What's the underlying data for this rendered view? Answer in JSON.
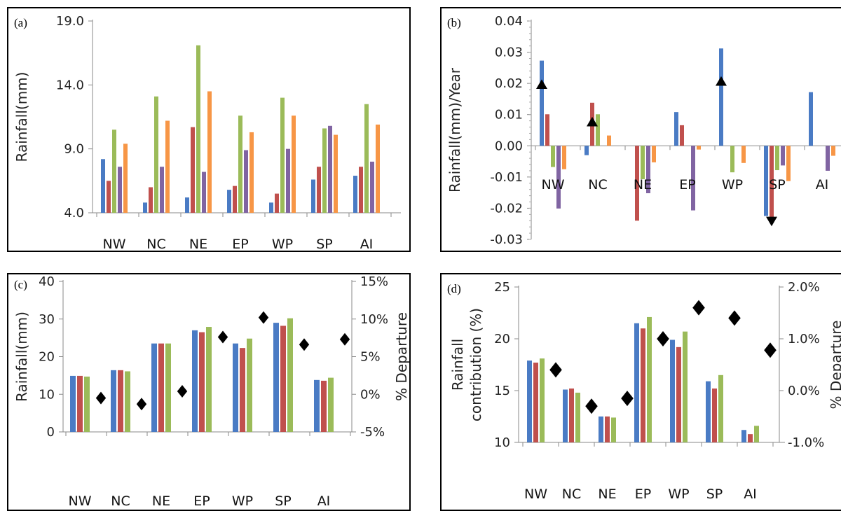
{
  "colors": {
    "blue": "#4a7bc4",
    "red": "#c0504d",
    "green": "#9bbb59",
    "purple": "#8064a2",
    "orange": "#f79646",
    "marker": "#000000"
  },
  "chart_data": [
    {
      "id": "a",
      "panel_label": "(a)",
      "type": "bar",
      "categories": [
        "NW",
        "NC",
        "NE",
        "EP",
        "WP",
        "SP",
        "AI"
      ],
      "ylabel": "Rainfall(mm)",
      "ylim": [
        4.0,
        19.0
      ],
      "yticks": [
        "4.0",
        "9.0",
        "14.0",
        "19.0"
      ],
      "ytick_values": [
        4,
        9,
        14,
        19
      ],
      "series": [
        {
          "color": "blue",
          "values": [
            8.2,
            4.8,
            5.2,
            5.8,
            4.8,
            6.6,
            6.9
          ]
        },
        {
          "color": "red",
          "values": [
            6.5,
            6.0,
            10.7,
            6.1,
            5.5,
            7.6,
            7.6
          ]
        },
        {
          "color": "green",
          "values": [
            10.5,
            13.1,
            17.1,
            11.6,
            13.0,
            10.6,
            12.5
          ]
        },
        {
          "color": "purple",
          "values": [
            7.6,
            7.6,
            7.2,
            8.9,
            9.0,
            10.8,
            8.0
          ]
        },
        {
          "color": "orange",
          "values": [
            9.4,
            11.2,
            13.5,
            10.3,
            11.6,
            10.1,
            10.9
          ]
        }
      ]
    },
    {
      "id": "b",
      "panel_label": "(b)",
      "type": "bar",
      "categories": [
        "NW",
        "NC",
        "NE",
        "EP",
        "WP",
        "SP",
        "AI"
      ],
      "ylabel": "Rainfall(mm)/Year",
      "ylim": [
        -0.03,
        0.04
      ],
      "yticks": [
        "-0.03",
        "-0.02",
        "-0.01",
        "0.00",
        "0.01",
        "0.02",
        "0.03",
        "0.04"
      ],
      "ytick_values": [
        -0.03,
        -0.02,
        -0.01,
        0.0,
        0.01,
        0.02,
        0.03,
        0.04
      ],
      "series": [
        {
          "color": "blue",
          "values": [
            0.0273,
            -0.003,
            0.0,
            0.0108,
            0.0312,
            -0.0225,
            0.0172
          ]
        },
        {
          "color": "red",
          "values": [
            0.0101,
            0.0138,
            -0.024,
            0.0066,
            0.0,
            -0.0245,
            0.0
          ]
        },
        {
          "color": "green",
          "values": [
            -0.0068,
            0.0101,
            -0.0107,
            0.0,
            -0.0085,
            -0.0078,
            0.0
          ]
        },
        {
          "color": "purple",
          "values": [
            -0.0201,
            0.0,
            -0.0152,
            -0.0207,
            0.0,
            -0.0063,
            -0.008
          ]
        },
        {
          "color": "orange",
          "values": [
            -0.0075,
            0.0033,
            -0.0053,
            -0.0012,
            -0.0055,
            -0.0113,
            -0.0032
          ]
        }
      ],
      "markers": [
        {
          "category": "NW",
          "series": 0,
          "value": 0.0195,
          "direction": "up"
        },
        {
          "category": "NC",
          "series": 1,
          "value": 0.0075,
          "direction": "up"
        },
        {
          "category": "WP",
          "series": 0,
          "value": 0.0205,
          "direction": "up"
        },
        {
          "category": "SP",
          "series": 1,
          "value": -0.024,
          "direction": "down"
        }
      ]
    },
    {
      "id": "c",
      "panel_label": "(c)",
      "type": "bar",
      "categories": [
        "NW",
        "NC",
        "NE",
        "EP",
        "WP",
        "SP",
        "AI"
      ],
      "ylabel": "Rainfall(mm)",
      "ylim": [
        0,
        40
      ],
      "yticks": [
        "0",
        "10",
        "20",
        "30",
        "40"
      ],
      "ytick_values": [
        0,
        10,
        20,
        30,
        40
      ],
      "ylabel_right": "% Departure",
      "ylim_right": [
        -5,
        15
      ],
      "yticks_right": [
        "-5%",
        "0%",
        "5%",
        "10%",
        "15%"
      ],
      "ytick_values_right": [
        -5,
        0,
        5,
        10,
        15
      ],
      "series": [
        {
          "color": "blue",
          "values": [
            14.9,
            16.4,
            23.5,
            27.0,
            23.5,
            29.0,
            13.8
          ]
        },
        {
          "color": "red",
          "values": [
            14.9,
            16.4,
            23.5,
            26.5,
            22.3,
            28.2,
            13.6
          ]
        },
        {
          "color": "green",
          "values": [
            14.7,
            16.1,
            23.5,
            27.9,
            24.8,
            30.2,
            14.4
          ]
        }
      ],
      "departure": [
        -0.5,
        -1.3,
        0.4,
        7.6,
        10.2,
        6.6,
        7.3
      ]
    },
    {
      "id": "d",
      "panel_label": "(d)",
      "type": "bar",
      "categories": [
        "NW",
        "NC",
        "NE",
        "EP",
        "WP",
        "SP",
        "AI"
      ],
      "ylabel_line1": "Rainfall",
      "ylabel_line2": "contribution (%)",
      "ylim": [
        10,
        25
      ],
      "yticks": [
        "10",
        "15",
        "20",
        "25"
      ],
      "ytick_values": [
        10,
        15,
        20,
        25
      ],
      "ylabel_right": "% Departure",
      "ylim_right": [
        -1.0,
        2.0
      ],
      "yticks_right": [
        "-1.0%",
        "0.0%",
        "1.0%",
        "2.0%"
      ],
      "ytick_values_right": [
        -1.0,
        0.0,
        1.0,
        2.0
      ],
      "series": [
        {
          "color": "blue",
          "values": [
            17.9,
            15.1,
            12.5,
            21.5,
            19.9,
            15.9,
            11.2
          ]
        },
        {
          "color": "red",
          "values": [
            17.7,
            15.2,
            12.5,
            21.0,
            19.2,
            15.2,
            10.8
          ]
        },
        {
          "color": "green",
          "values": [
            18.1,
            14.8,
            12.4,
            22.1,
            20.7,
            16.5,
            11.6
          ]
        }
      ],
      "departure": [
        0.4,
        -0.3,
        -0.15,
        1.0,
        1.6,
        1.4,
        0.78
      ]
    }
  ]
}
